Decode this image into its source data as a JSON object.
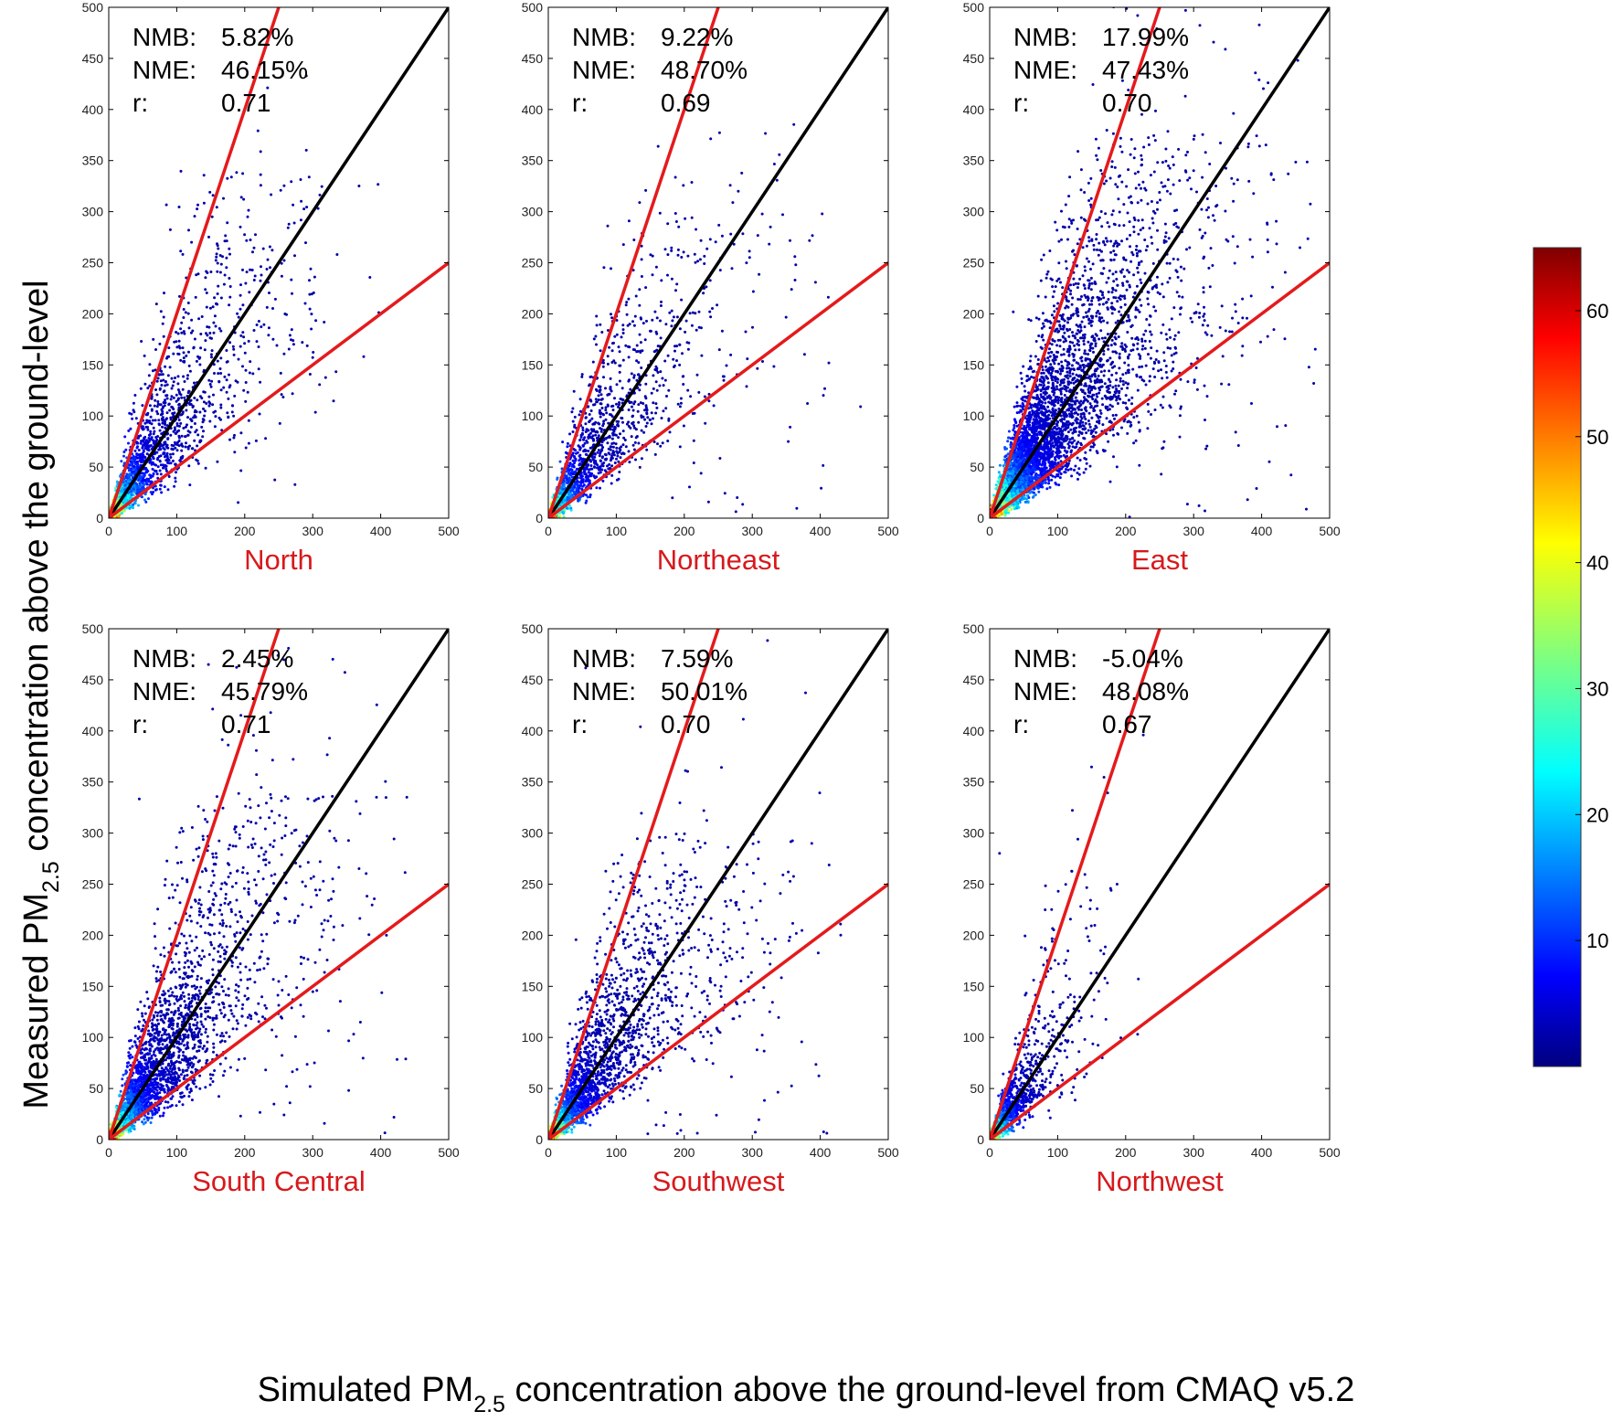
{
  "figure": {
    "xlabel_pre": "Simulated PM",
    "xlabel_sub": "2.5",
    "xlabel_post": " concentration above the ground-level from CMAQ v5.2",
    "ylabel_pre": "Measured PM",
    "ylabel_sub": "2.5",
    "ylabel_post": "  concentration above the ground-level"
  },
  "colors": {
    "one_to_one_line": "#000000",
    "factor_lines": "#e41a1c",
    "region_label": "#d7191c"
  },
  "chart_data": [
    {
      "type": "scatter",
      "region": "North",
      "xlim": [
        0,
        500
      ],
      "ylim": [
        0,
        500
      ],
      "xticks": [
        "0",
        "100",
        "200",
        "300",
        "400",
        "500"
      ],
      "yticks": [
        "0",
        "50",
        "100",
        "150",
        "200",
        "250",
        "300",
        "350",
        "400",
        "450",
        "500"
      ],
      "stats": [
        {
          "label": "NMB:",
          "value": "5.82%"
        },
        {
          "label": "NME:",
          "value": "46.15%"
        },
        {
          "label": "r:",
          "value": "0.71"
        }
      ],
      "lines": [
        {
          "slope": 1
        },
        {
          "slope": 2
        },
        {
          "slope": 0.5
        }
      ],
      "density": {
        "n": 1900,
        "xmax": 400,
        "ymax": 340,
        "cut": 45
      }
    },
    {
      "type": "scatter",
      "region": "Northeast",
      "xlim": [
        0,
        500
      ],
      "ylim": [
        0,
        500
      ],
      "xticks": [
        "0",
        "100",
        "200",
        "300",
        "400",
        "500"
      ],
      "yticks": [
        "0",
        "50",
        "100",
        "150",
        "200",
        "250",
        "300",
        "350",
        "400",
        "450",
        "500"
      ],
      "stats": [
        {
          "label": "NMB:",
          "value": "9.22%"
        },
        {
          "label": "NME:",
          "value": "48.70%"
        },
        {
          "label": "r:",
          "value": "0.69"
        }
      ],
      "lines": [
        {
          "slope": 1
        },
        {
          "slope": 2
        },
        {
          "slope": 0.5
        }
      ],
      "density": {
        "n": 1500,
        "xmax": 460,
        "ymax": 300,
        "cut": 38
      }
    },
    {
      "type": "scatter",
      "region": "East",
      "xlim": [
        0,
        500
      ],
      "ylim": [
        0,
        500
      ],
      "xticks": [
        "0",
        "100",
        "200",
        "300",
        "400",
        "500"
      ],
      "yticks": [
        "0",
        "50",
        "100",
        "150",
        "200",
        "250",
        "300",
        "350",
        "400",
        "450",
        "500"
      ],
      "stats": [
        {
          "label": "NMB:",
          "value": "17.99%"
        },
        {
          "label": "NME:",
          "value": "47.43%"
        },
        {
          "label": "r:",
          "value": "0.70"
        }
      ],
      "lines": [
        {
          "slope": 1
        },
        {
          "slope": 2
        },
        {
          "slope": 0.5
        }
      ],
      "density": {
        "n": 5200,
        "xmax": 480,
        "ymax": 380,
        "cut": 55
      }
    },
    {
      "type": "scatter",
      "region": "South Central",
      "xlim": [
        0,
        500
      ],
      "ylim": [
        0,
        500
      ],
      "xticks": [
        "0",
        "100",
        "200",
        "300",
        "400",
        "500"
      ],
      "yticks": [
        "0",
        "50",
        "100",
        "150",
        "200",
        "250",
        "300",
        "350",
        "400",
        "450",
        "500"
      ],
      "stats": [
        {
          "label": "NMB:",
          "value": "2.45%"
        },
        {
          "label": "NME:",
          "value": "45.79%"
        },
        {
          "label": "r:",
          "value": "0.71"
        }
      ],
      "lines": [
        {
          "slope": 1
        },
        {
          "slope": 2
        },
        {
          "slope": 0.5
        }
      ],
      "density": {
        "n": 3000,
        "xmax": 440,
        "ymax": 340,
        "cut": 45
      }
    },
    {
      "type": "scatter",
      "region": "Southwest",
      "xlim": [
        0,
        500
      ],
      "ylim": [
        0,
        500
      ],
      "xticks": [
        "0",
        "100",
        "200",
        "300",
        "400",
        "500"
      ],
      "yticks": [
        "0",
        "50",
        "100",
        "150",
        "200",
        "250",
        "300",
        "350",
        "400",
        "450",
        "500"
      ],
      "stats": [
        {
          "label": "NMB:",
          "value": "7.59%"
        },
        {
          "label": "NME:",
          "value": "50.01%"
        },
        {
          "label": "r:",
          "value": "0.70"
        }
      ],
      "lines": [
        {
          "slope": 1
        },
        {
          "slope": 2
        },
        {
          "slope": 0.5
        }
      ],
      "density": {
        "n": 2400,
        "xmax": 440,
        "ymax": 300,
        "cut": 40
      }
    },
    {
      "type": "scatter",
      "region": "Northwest",
      "xlim": [
        0,
        500
      ],
      "ylim": [
        0,
        500
      ],
      "xticks": [
        "0",
        "100",
        "200",
        "300",
        "400",
        "500"
      ],
      "yticks": [
        "0",
        "50",
        "100",
        "150",
        "200",
        "250",
        "300",
        "350",
        "400",
        "450",
        "500"
      ],
      "stats": [
        {
          "label": "NMB:",
          "value": "-5.04%"
        },
        {
          "label": "NME:",
          "value": "48.08%"
        },
        {
          "label": "r:",
          "value": "0.67"
        }
      ],
      "lines": [
        {
          "slope": 1
        },
        {
          "slope": 2
        },
        {
          "slope": 0.5
        }
      ],
      "density": {
        "n": 1100,
        "xmax": 230,
        "ymax": 420,
        "cut": 30
      }
    }
  ],
  "colorbar": {
    "range": [
      0,
      65
    ],
    "ticks": [
      "10",
      "20",
      "30",
      "40",
      "50",
      "60"
    ],
    "colormap": "jet"
  }
}
